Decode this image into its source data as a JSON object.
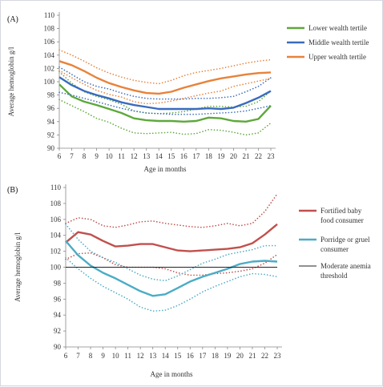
{
  "chart_data": [
    {
      "panel_label": "(A)",
      "type": "line",
      "xlabel": "Age in months",
      "ylabel": "Average hemoglobin  g/l",
      "x": [
        6,
        7,
        8,
        9,
        10,
        11,
        12,
        13,
        14,
        15,
        16,
        17,
        18,
        19,
        20,
        21,
        22,
        23
      ],
      "xlim": [
        6,
        23
      ],
      "ylim": [
        90,
        110
      ],
      "yticks": [
        90,
        92,
        94,
        96,
        98,
        100,
        102,
        104,
        106,
        108,
        110
      ],
      "legend_position": "right",
      "series": [
        {
          "name": "Lower wealth tertile",
          "color": "#5ea83c",
          "style": "solid",
          "values": [
            99.6,
            97.8,
            97.0,
            96.5,
            95.9,
            95.3,
            94.5,
            94.2,
            94.1,
            94.1,
            94.0,
            94.1,
            94.6,
            94.5,
            94.1,
            94.0,
            94.4,
            96.4
          ]
        },
        {
          "style": "dotted",
          "color": "#5ea83c",
          "values": [
            97.3,
            96.4,
            95.5,
            94.5,
            93.9,
            93.0,
            92.3,
            92.2,
            92.3,
            92.4,
            92.1,
            92.2,
            92.8,
            92.7,
            92.4,
            92.0,
            92.3,
            93.8
          ]
        },
        {
          "style": "dotted",
          "color": "#5ea83c",
          "values": [
            101.5,
            99.8,
            98.5,
            97.8,
            97.3,
            96.6,
            95.6,
            95.3,
            95.2,
            95.3,
            95.5,
            95.9,
            96.3,
            96.3,
            96.2,
            96.3,
            97.0,
            98.6
          ]
        },
        {
          "name": "Middle wealth tertile",
          "color": "#3a6bbf",
          "style": "solid",
          "values": [
            100.7,
            99.5,
            98.6,
            98.0,
            97.5,
            96.9,
            96.5,
            96.2,
            95.9,
            95.9,
            95.9,
            95.9,
            96.0,
            95.9,
            96.1,
            96.8,
            97.6,
            98.6
          ]
        },
        {
          "style": "dotted",
          "color": "#3a6bbf",
          "values": [
            98.4,
            98.0,
            97.5,
            97.0,
            96.5,
            96.0,
            95.6,
            95.3,
            95.2,
            95.1,
            95.1,
            95.1,
            95.2,
            95.3,
            95.4,
            95.6,
            96.0,
            96.4
          ]
        },
        {
          "style": "dotted",
          "color": "#3a6bbf",
          "values": [
            102.2,
            101.1,
            100.0,
            99.3,
            98.9,
            98.3,
            97.8,
            97.5,
            97.4,
            97.4,
            97.4,
            97.5,
            97.5,
            97.6,
            97.8,
            98.5,
            99.3,
            100.6
          ]
        },
        {
          "name": "Upper wealth tertile",
          "color": "#e8823a",
          "style": "solid",
          "values": [
            103.1,
            102.5,
            101.6,
            100.6,
            99.8,
            99.2,
            98.7,
            98.3,
            98.2,
            98.5,
            99.1,
            99.6,
            100.1,
            100.5,
            100.8,
            101.1,
            101.3,
            101.4
          ]
        },
        {
          "style": "dotted",
          "color": "#e8823a",
          "values": [
            101.7,
            100.6,
            99.6,
            98.7,
            98.1,
            97.7,
            97.0,
            96.7,
            96.8,
            97.1,
            97.5,
            97.9,
            98.3,
            98.6,
            99.3,
            99.7,
            100.1,
            100.5
          ]
        },
        {
          "style": "dotted",
          "color": "#e8823a",
          "values": [
            104.8,
            104.0,
            103.1,
            102.1,
            101.3,
            100.7,
            100.2,
            99.9,
            99.7,
            100.2,
            100.9,
            101.4,
            101.7,
            102.0,
            102.4,
            102.8,
            103.1,
            103.3
          ]
        }
      ]
    },
    {
      "panel_label": "(B)",
      "type": "line",
      "xlabel": "Age in months",
      "ylabel": "Average hemoglobin g/l",
      "x": [
        6,
        7,
        8,
        9,
        10,
        11,
        12,
        13,
        14,
        15,
        16,
        17,
        18,
        19,
        20,
        21,
        22,
        23
      ],
      "xlim": [
        6,
        23
      ],
      "ylim": [
        90,
        110
      ],
      "yticks": [
        90,
        92,
        94,
        96,
        98,
        100,
        102,
        104,
        106,
        108,
        110
      ],
      "legend_position": "right",
      "series": [
        {
          "name": "Fortified baby food consumer",
          "color": "#c0504d",
          "style": "solid",
          "values": [
            103.1,
            104.4,
            104.1,
            103.3,
            102.6,
            102.7,
            102.9,
            102.9,
            102.5,
            102.1,
            102.0,
            102.1,
            102.2,
            102.3,
            102.5,
            103.0,
            104.1,
            105.4
          ]
        },
        {
          "style": "dotted",
          "color": "#c0504d",
          "values": [
            105.5,
            106.2,
            106.0,
            105.2,
            105.0,
            105.3,
            105.7,
            105.8,
            105.5,
            105.3,
            105.1,
            105.0,
            105.2,
            105.5,
            105.2,
            105.5,
            107.0,
            109.2
          ]
        },
        {
          "style": "dotted",
          "color": "#c0504d",
          "values": [
            101.0,
            101.7,
            101.8,
            101.2,
            100.3,
            100.0,
            100.0,
            100.0,
            99.8,
            99.3,
            99.0,
            99.0,
            99.2,
            99.3,
            99.5,
            99.8,
            100.5,
            101.6
          ]
        },
        {
          "name": "Porridge or gruel consumer",
          "color": "#4bacc6",
          "style": "solid",
          "values": [
            103.3,
            101.5,
            100.2,
            99.3,
            98.6,
            97.8,
            97.0,
            96.4,
            96.6,
            97.4,
            98.2,
            98.8,
            99.3,
            99.8,
            100.4,
            100.7,
            100.8,
            100.7
          ]
        },
        {
          "style": "dotted",
          "color": "#4bacc6",
          "values": [
            105.4,
            103.5,
            102.0,
            101.2,
            100.6,
            99.8,
            99.0,
            98.5,
            98.3,
            98.9,
            99.7,
            100.5,
            101.0,
            101.6,
            101.9,
            102.2,
            102.7,
            102.7
          ]
        },
        {
          "style": "dotted",
          "color": "#4bacc6",
          "values": [
            101.2,
            99.8,
            98.6,
            97.6,
            96.8,
            96.0,
            95.0,
            94.5,
            94.6,
            95.2,
            96.0,
            96.9,
            97.6,
            98.2,
            98.8,
            99.2,
            99.1,
            98.8
          ]
        },
        {
          "name": "Moderate anemia threshold",
          "color": "#222222",
          "style": "solid",
          "values": [
            100,
            100,
            100,
            100,
            100,
            100,
            100,
            100,
            100,
            100,
            100,
            100,
            100,
            100,
            100,
            100,
            100,
            100
          ]
        }
      ]
    }
  ],
  "legend_text": [
    {
      "lines": [
        "Lower wealth tertile"
      ]
    },
    {
      "lines": [
        "Middle wealth tertile"
      ]
    },
    {
      "lines": [
        "Upper wealth tertile"
      ]
    },
    {
      "lines": [
        "Fortified baby",
        "food consumer"
      ]
    },
    {
      "lines": [
        "Porridge or gruel",
        "consumer"
      ]
    },
    {
      "lines": [
        "Moderate anemia",
        "threshold"
      ]
    }
  ]
}
